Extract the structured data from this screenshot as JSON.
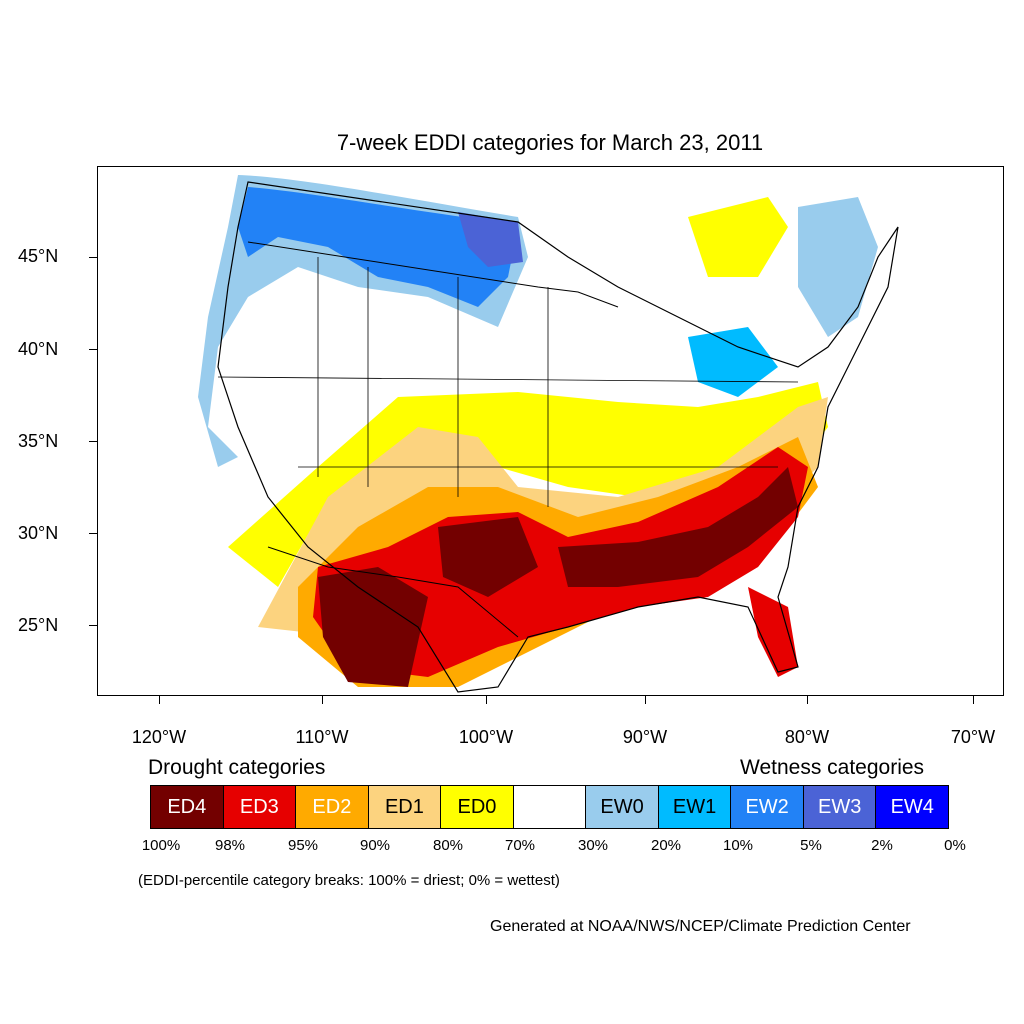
{
  "title": "7-week EDDI categories for March 23, 2011",
  "map": {
    "latitudes": [
      "45°N",
      "40°N",
      "35°N",
      "30°N",
      "25°N"
    ],
    "longitudes": [
      "120°W",
      "110°W",
      "100°W",
      "90°W",
      "80°W",
      "70°W"
    ]
  },
  "legend": {
    "drought_title": "Drought categories",
    "wetness_title": "Wetness categories",
    "categories": [
      {
        "label": "ED4",
        "color": "#730000",
        "text_color": "#ffffff"
      },
      {
        "label": "ED3",
        "color": "#e60000",
        "text_color": "#ffffff"
      },
      {
        "label": "ED2",
        "color": "#ffaa00",
        "text_color": "#ffffff"
      },
      {
        "label": "ED1",
        "color": "#fcd37f",
        "text_color": "#000000"
      },
      {
        "label": "ED0",
        "color": "#ffff00",
        "text_color": "#000000"
      },
      {
        "label": "",
        "color": "#ffffff",
        "text_color": "#000000"
      },
      {
        "label": "EW0",
        "color": "#99cced",
        "text_color": "#000000"
      },
      {
        "label": "EW1",
        "color": "#00bbff",
        "text_color": "#000000"
      },
      {
        "label": "EW2",
        "color": "#2282f6",
        "text_color": "#ffffff"
      },
      {
        "label": "EW3",
        "color": "#4b63d6",
        "text_color": "#ffffff"
      },
      {
        "label": "EW4",
        "color": "#0000ff",
        "text_color": "#ffffff"
      }
    ],
    "breaks": [
      "100%",
      "98%",
      "95%",
      "90%",
      "80%",
      "70%",
      "30%",
      "20%",
      "10%",
      "5%",
      "2%",
      "0%"
    ],
    "note": "(EDDI-percentile category breaks: 100% = driest; 0% = wettest)"
  },
  "credit": "Generated at NOAA/NWS/NCEP/Climate Prediction Center"
}
